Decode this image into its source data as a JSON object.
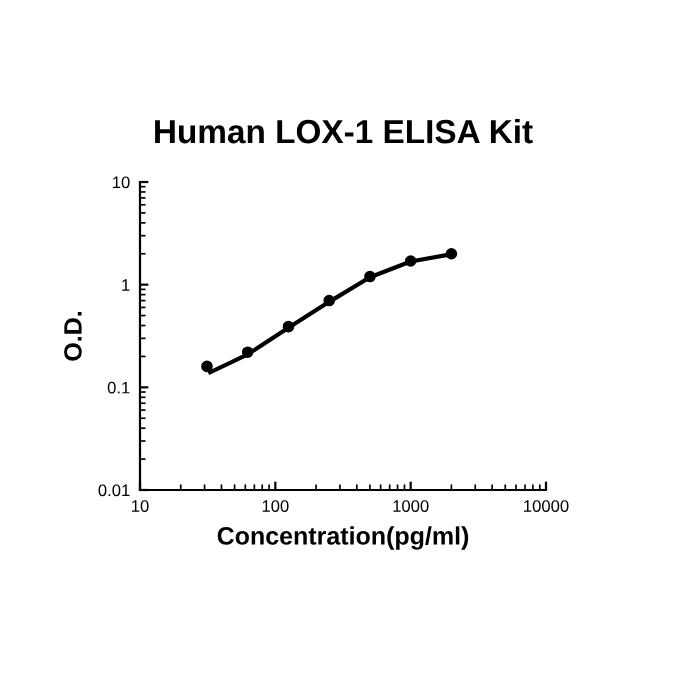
{
  "chart_data": {
    "type": "scatter",
    "title": "Human LOX-1 ELISA Kit",
    "xlabel": "Concentration(pg/ml)",
    "ylabel": "O.D.",
    "log": "xy",
    "xlim": [
      10,
      10000
    ],
    "xticks": [
      10,
      100,
      1000,
      10000
    ],
    "ylim": [
      0.01,
      10
    ],
    "yticks": [
      0.01,
      0.1,
      1,
      10
    ],
    "series": [
      {
        "color": "#000000",
        "marker": "circle",
        "x": [
          31.25,
          62.5,
          125,
          250,
          500,
          1000,
          2000
        ],
        "values": [
          0.16,
          0.22,
          0.39,
          0.7,
          1.2,
          1.7,
          2.0
        ]
      },
      {
        "type": "line",
        "color": "#000000",
        "marker": "none",
        "line_style": "solid",
        "x": [
          33,
          62.5,
          125,
          250,
          500,
          1000,
          2000
        ],
        "values": [
          0.14,
          0.21,
          0.38,
          0.68,
          1.18,
          1.68,
          1.98
        ]
      }
    ]
  }
}
